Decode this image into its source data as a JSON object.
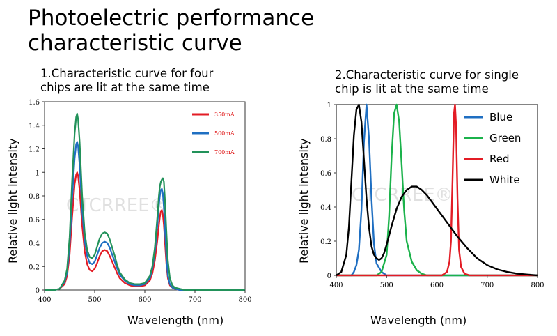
{
  "title_lines": [
    "Photoelectric performance",
    "characteristic curve"
  ],
  "colors": {
    "red": "#e31c25",
    "blue": "#1f6fc2",
    "green": "#22925a",
    "green2": "#1bb24b",
    "black": "#000000"
  },
  "watermark": "CTCRREE®",
  "chart_data": [
    {
      "type": "line",
      "subtitle_lines": [
        "1.Characteristic curve for four",
        "chips are lit at the same time"
      ],
      "xlabel": "Wavelength (nm)",
      "ylabel": "Relative light intensity",
      "xlim": [
        400,
        800
      ],
      "ylim": [
        0,
        1.6
      ],
      "xticks": [
        "400",
        "500",
        "600",
        "700",
        "800"
      ],
      "yticks": [
        "0",
        "0.2",
        "0.4",
        "0.6",
        "0.8",
        "1",
        "1.2",
        "1.4",
        "1.6"
      ],
      "grid": false,
      "legend_position": "top-right",
      "x": [
        400,
        420,
        430,
        440,
        445,
        450,
        455,
        460,
        463,
        465,
        467,
        470,
        475,
        480,
        485,
        490,
        495,
        500,
        505,
        510,
        515,
        520,
        525,
        530,
        535,
        540,
        545,
        550,
        560,
        570,
        580,
        590,
        600,
        610,
        615,
        620,
        625,
        628,
        630,
        632,
        634,
        636,
        638,
        640,
        643,
        646,
        650,
        655,
        660,
        670,
        680,
        700,
        750,
        800
      ],
      "series": [
        {
          "name": "350mA",
          "color": "red",
          "values": [
            0,
            0,
            0.01,
            0.05,
            0.12,
            0.3,
            0.62,
            0.9,
            0.98,
            1.0,
            0.97,
            0.85,
            0.55,
            0.33,
            0.22,
            0.17,
            0.16,
            0.18,
            0.23,
            0.29,
            0.33,
            0.34,
            0.33,
            0.29,
            0.24,
            0.19,
            0.14,
            0.1,
            0.06,
            0.04,
            0.03,
            0.03,
            0.04,
            0.08,
            0.14,
            0.25,
            0.42,
            0.55,
            0.62,
            0.67,
            0.68,
            0.64,
            0.55,
            0.42,
            0.22,
            0.1,
            0.04,
            0.02,
            0.01,
            0,
            0,
            0,
            0,
            0
          ]
        },
        {
          "name": "500mA",
          "color": "blue",
          "values": [
            0,
            0,
            0.01,
            0.07,
            0.15,
            0.38,
            0.78,
            1.12,
            1.24,
            1.26,
            1.22,
            1.06,
            0.68,
            0.42,
            0.29,
            0.23,
            0.22,
            0.24,
            0.3,
            0.36,
            0.4,
            0.41,
            0.4,
            0.36,
            0.3,
            0.24,
            0.18,
            0.13,
            0.08,
            0.05,
            0.04,
            0.04,
            0.05,
            0.1,
            0.18,
            0.32,
            0.55,
            0.72,
            0.8,
            0.85,
            0.86,
            0.82,
            0.7,
            0.54,
            0.28,
            0.12,
            0.05,
            0.02,
            0.01,
            0,
            0,
            0,
            0,
            0
          ]
        },
        {
          "name": "700mA",
          "color": "green",
          "values": [
            0,
            0,
            0.01,
            0.08,
            0.18,
            0.45,
            0.93,
            1.33,
            1.47,
            1.5,
            1.45,
            1.26,
            0.8,
            0.49,
            0.34,
            0.28,
            0.27,
            0.3,
            0.37,
            0.44,
            0.48,
            0.49,
            0.48,
            0.43,
            0.36,
            0.29,
            0.21,
            0.15,
            0.09,
            0.06,
            0.05,
            0.05,
            0.06,
            0.12,
            0.2,
            0.36,
            0.62,
            0.8,
            0.88,
            0.92,
            0.94,
            0.95,
            0.92,
            0.78,
            0.5,
            0.25,
            0.1,
            0.04,
            0.02,
            0.01,
            0,
            0,
            0,
            0
          ]
        }
      ]
    },
    {
      "type": "line",
      "subtitle_lines": [
        "2.Characteristic curve for single",
        "chip is lit at the same time"
      ],
      "xlabel": "Wavelength (nm)",
      "ylabel": "Relative light intensity",
      "xlim": [
        400,
        800
      ],
      "ylim": [
        0,
        1
      ],
      "xticks": [
        "400",
        "500",
        "600",
        "700",
        "800"
      ],
      "yticks": [
        "0",
        "0.2",
        "0.4",
        "0.6",
        "0.8",
        "1"
      ],
      "grid": false,
      "legend_position": "top-right",
      "series": [
        {
          "name": "Blue",
          "color": "blue",
          "x": [
            400,
            430,
            435,
            440,
            445,
            450,
            455,
            460,
            465,
            470,
            475,
            480,
            490,
            500,
            800
          ],
          "values": [
            0,
            0,
            0.02,
            0.06,
            0.15,
            0.38,
            0.78,
            1.0,
            0.8,
            0.45,
            0.18,
            0.07,
            0.02,
            0,
            0
          ]
        },
        {
          "name": "Green",
          "color": "green2",
          "x": [
            400,
            480,
            490,
            500,
            505,
            510,
            515,
            520,
            525,
            530,
            535,
            540,
            550,
            560,
            570,
            580,
            800
          ],
          "values": [
            0,
            0,
            0.02,
            0.12,
            0.35,
            0.7,
            0.95,
            1.0,
            0.9,
            0.65,
            0.38,
            0.2,
            0.08,
            0.03,
            0.01,
            0,
            0
          ]
        },
        {
          "name": "Red",
          "color": "red",
          "x": [
            400,
            610,
            620,
            625,
            628,
            631,
            634,
            636,
            638,
            641,
            644,
            648,
            655,
            665,
            800
          ],
          "values": [
            0,
            0,
            0.02,
            0.08,
            0.2,
            0.55,
            0.95,
            1.0,
            0.88,
            0.45,
            0.15,
            0.05,
            0.01,
            0,
            0
          ]
        },
        {
          "name": "White",
          "color": "black",
          "x": [
            400,
            410,
            420,
            425,
            430,
            435,
            440,
            445,
            450,
            455,
            460,
            465,
            470,
            475,
            480,
            485,
            490,
            495,
            500,
            510,
            520,
            530,
            540,
            550,
            560,
            570,
            580,
            590,
            600,
            620,
            640,
            660,
            680,
            700,
            720,
            740,
            760,
            780,
            800
          ],
          "values": [
            0,
            0.02,
            0.12,
            0.28,
            0.55,
            0.82,
            0.97,
            1.0,
            0.9,
            0.68,
            0.45,
            0.28,
            0.17,
            0.12,
            0.1,
            0.09,
            0.1,
            0.13,
            0.18,
            0.29,
            0.39,
            0.46,
            0.5,
            0.52,
            0.52,
            0.5,
            0.47,
            0.43,
            0.39,
            0.31,
            0.23,
            0.16,
            0.1,
            0.06,
            0.035,
            0.02,
            0.01,
            0.005,
            0
          ]
        }
      ]
    }
  ]
}
